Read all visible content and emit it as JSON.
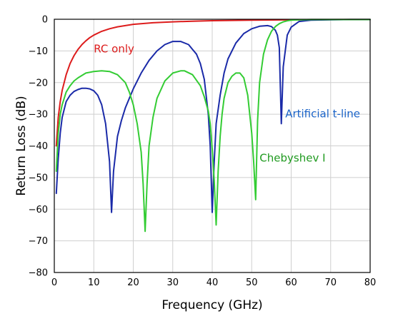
{
  "chart_data": {
    "type": "line",
    "xlabel": "Frequency (GHz)",
    "ylabel": "Return Loss (dB)",
    "xlim": [
      0,
      80
    ],
    "ylim": [
      -80,
      0
    ],
    "xticks": [
      0,
      10,
      20,
      30,
      40,
      50,
      60,
      70,
      80
    ],
    "yticks": [
      0,
      -10,
      -20,
      -30,
      -40,
      -50,
      -60,
      -70,
      -80
    ],
    "grid": true,
    "legend": "inline labels",
    "series": [
      {
        "name": "RC only",
        "color": "#dd1c1c",
        "label_at": [
          10,
          -10.5
        ],
        "x": [
          0.5,
          1,
          1.5,
          2,
          3,
          4,
          5,
          6,
          7,
          8,
          9,
          10,
          12,
          14,
          16,
          18,
          20,
          25,
          30,
          35,
          40,
          45,
          50,
          55,
          60,
          65,
          70,
          75,
          80
        ],
        "y": [
          -40,
          -31,
          -26,
          -22.5,
          -17.5,
          -14,
          -11.5,
          -9.5,
          -8,
          -6.8,
          -5.8,
          -5,
          -3.8,
          -3,
          -2.4,
          -2,
          -1.6,
          -1.1,
          -0.8,
          -0.6,
          -0.45,
          -0.35,
          -0.28,
          -0.22,
          -0.18,
          -0.15,
          -0.12,
          -0.1,
          -0.1
        ]
      },
      {
        "name": "Artificial t-line",
        "color": "#1a2aa8",
        "label_color": "#1a63c8",
        "label_at": [
          58.5,
          -31
        ],
        "x": [
          0.5,
          1,
          1.5,
          2,
          3,
          4,
          5,
          6,
          7,
          8,
          9,
          10,
          11,
          12,
          13,
          14,
          14.5,
          15,
          16,
          17,
          18,
          20,
          22,
          24,
          26,
          28,
          30,
          32,
          34,
          35,
          36,
          37,
          38,
          39,
          39.5,
          40,
          40.5,
          41,
          42,
          43,
          44,
          46,
          48,
          50,
          52,
          54,
          55,
          56,
          56.5,
          57,
          57.5,
          58,
          59,
          60,
          62,
          65,
          70,
          75,
          80
        ],
        "y": [
          -55,
          -44,
          -36,
          -31,
          -26,
          -24,
          -22.8,
          -22.2,
          -21.8,
          -21.8,
          -22,
          -22.6,
          -24,
          -27,
          -33,
          -45,
          -61,
          -48,
          -37,
          -32,
          -28,
          -22,
          -17,
          -13,
          -10,
          -8,
          -7,
          -7,
          -8,
          -9.5,
          -11,
          -14,
          -19,
          -30,
          -40,
          -61,
          -45,
          -33,
          -24,
          -17,
          -12.5,
          -7.5,
          -4.5,
          -3,
          -2.2,
          -2,
          -2.3,
          -3.5,
          -5,
          -9,
          -33,
          -15,
          -5,
          -2.5,
          -0.7,
          -0.3,
          -0.15,
          -0.1,
          -0.1
        ]
      },
      {
        "name": "Chebyshev I",
        "color": "#33cc33",
        "label_color": "#1f9a1f",
        "label_at": [
          52,
          -45
        ],
        "x": [
          0.5,
          1,
          1.5,
          2,
          3,
          4,
          5,
          6,
          8,
          10,
          12,
          14,
          16,
          18,
          19,
          20,
          21,
          22,
          22.5,
          23,
          23.5,
          24,
          25,
          26,
          28,
          30,
          32,
          33,
          35,
          37,
          38,
          39,
          39.5,
          40,
          40.5,
          41,
          41.5,
          42,
          42.5,
          43,
          44,
          45,
          46,
          47,
          48,
          49,
          50,
          50.5,
          51,
          51.5,
          52,
          53,
          54,
          55,
          56,
          57,
          58,
          59,
          60,
          62,
          65,
          70,
          75,
          80
        ],
        "y": [
          -48,
          -36,
          -30,
          -27,
          -23,
          -21,
          -19.5,
          -18.5,
          -17,
          -16.5,
          -16.3,
          -16.5,
          -17.5,
          -20,
          -23,
          -27,
          -33,
          -42,
          -52,
          -67,
          -52,
          -40,
          -31,
          -25,
          -19.5,
          -17,
          -16.3,
          -16.3,
          -17.5,
          -21,
          -24.5,
          -29,
          -33,
          -41,
          -51,
          -65,
          -48,
          -37,
          -30,
          -25,
          -20,
          -18,
          -17,
          -17,
          -18.5,
          -24,
          -36,
          -45,
          -57,
          -32,
          -20,
          -11,
          -6.5,
          -3.8,
          -2.3,
          -1.4,
          -0.8,
          -0.5,
          -0.3,
          -0.15,
          -0.1,
          -0.1,
          -0.1,
          -0.1
        ]
      }
    ]
  }
}
